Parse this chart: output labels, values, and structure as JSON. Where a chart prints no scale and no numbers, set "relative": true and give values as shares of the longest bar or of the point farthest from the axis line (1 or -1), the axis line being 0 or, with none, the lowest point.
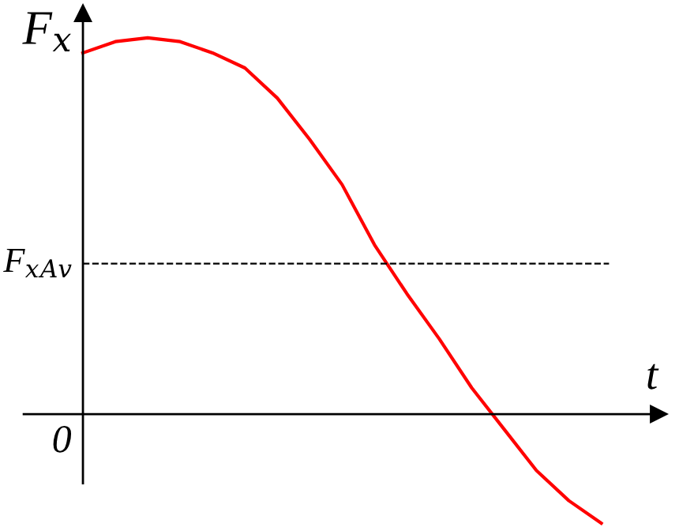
{
  "chart_data": {
    "type": "line",
    "relative": true,
    "xlabel": "t",
    "ylabel": "F$_{x}$",
    "annotations": [
      "0"
    ],
    "categories": [
      null,
      null,
      null,
      null,
      null,
      null,
      null,
      null,
      null,
      null,
      null,
      null,
      null,
      null,
      null,
      null,
      null
    ],
    "series": [
      {
        "color": "#ff0000",
        "values": [
          0.96,
          0.99,
          1.0,
          0.99,
          0.96,
          0.92,
          0.84,
          0.73,
          0.61,
          0.45,
          0.32,
          0.2,
          0.07,
          -0.04,
          -0.15,
          -0.23,
          -0.29
        ]
      }
    ],
    "ref_lines": [
      {
        "axis": "y",
        "value": 0.4,
        "label": "F$_{x}$$_{Av}$",
        "color": "#000000",
        "line_style": "dashed"
      }
    ],
    "line_style": "solid"
  }
}
